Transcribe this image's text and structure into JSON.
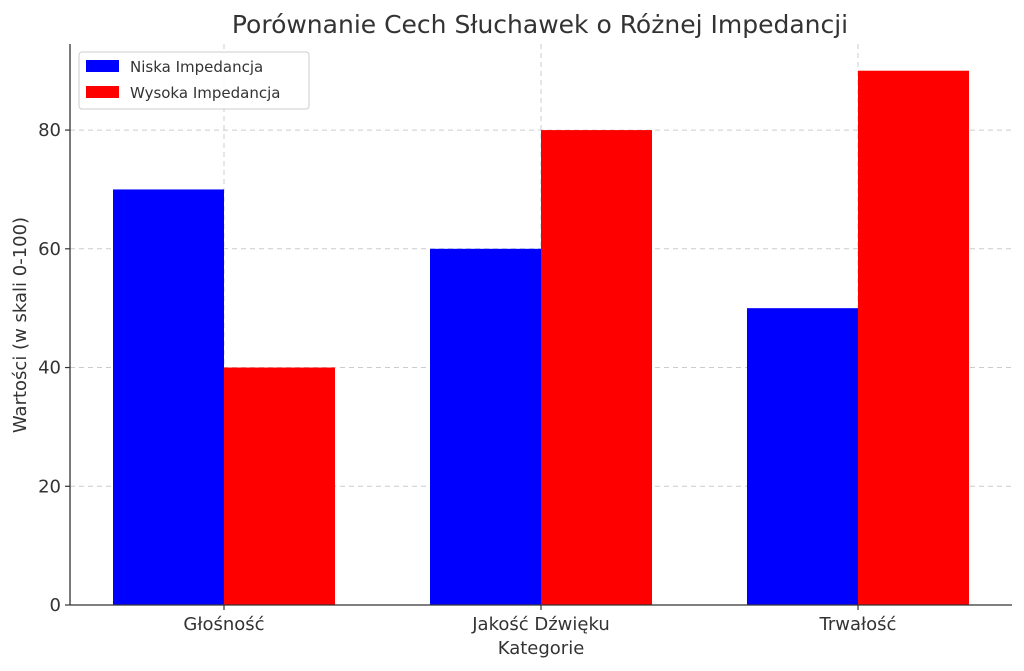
{
  "chart_data": {
    "type": "bar",
    "title": "Porównanie Cech Słuchawek o Różnej Impedancji",
    "xlabel": "Kategorie",
    "ylabel": "Wartości (w skali 0-100)",
    "categories": [
      "Głośność",
      "Jakość Dźwięku",
      "Trwałość"
    ],
    "series": [
      {
        "name": "Niska Impedancja",
        "color": "#0000ff",
        "values": [
          70,
          60,
          50
        ]
      },
      {
        "name": "Wysoka Impedancja",
        "color": "#ff0000",
        "values": [
          40,
          80,
          90
        ]
      }
    ],
    "ylim": [
      0,
      94.5
    ],
    "yticks": [
      0,
      20,
      40,
      60,
      80
    ],
    "grid": true,
    "legend_position": "top-left"
  }
}
